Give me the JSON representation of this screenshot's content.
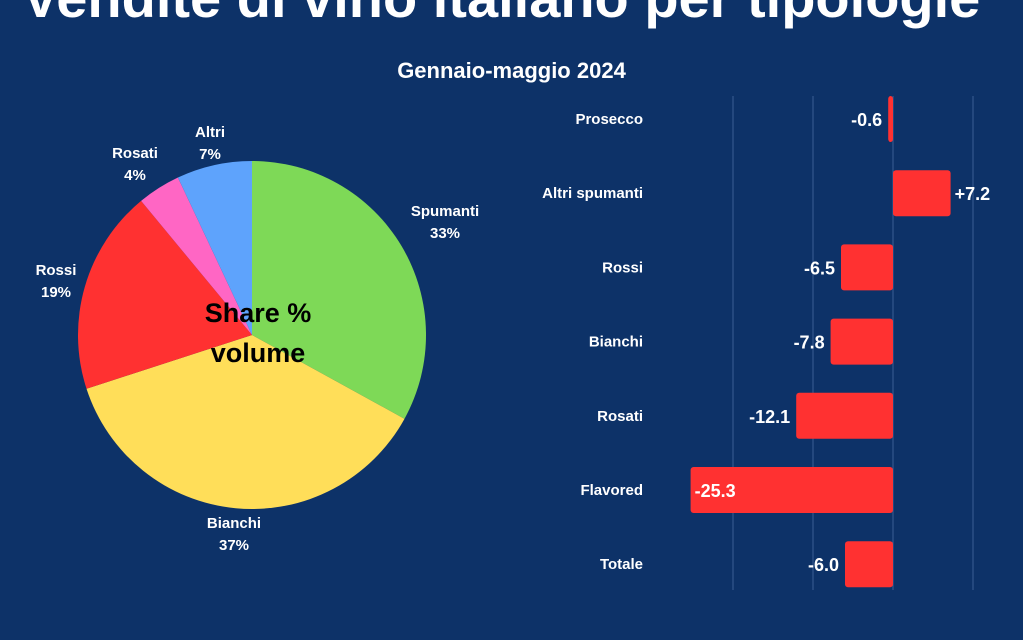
{
  "header": {
    "title": "Vendite di vino italiano per tipologie",
    "subtitle": "Gennaio-maggio 2024"
  },
  "chart_data": [
    {
      "type": "pie",
      "center_label": [
        "Share %",
        "volume"
      ],
      "slices": [
        {
          "label": "Spumanti",
          "value": 33,
          "pct_text": "33%",
          "color": "#7ed957"
        },
        {
          "label": "Bianchi",
          "value": 37,
          "pct_text": "37%",
          "color": "#ffde59"
        },
        {
          "label": "Rossi",
          "value": 19,
          "pct_text": "19%",
          "color": "#ff3131"
        },
        {
          "label": "Rosati",
          "value": 4,
          "pct_text": "4%",
          "color": "#ff66c4"
        },
        {
          "label": "Altri",
          "value": 7,
          "pct_text": "7%",
          "color": "#5ea3fc"
        }
      ]
    },
    {
      "type": "bar",
      "orientation": "horizontal",
      "categories": [
        "Prosecco",
        "Altri spumanti",
        "Rossi",
        "Bianchi",
        "Rosati",
        "Flavored",
        "Totale"
      ],
      "values": [
        -0.6,
        7.2,
        -6.5,
        -7.8,
        -12.1,
        -25.3,
        -6.0
      ],
      "value_labels": [
        "-0.6",
        "+7.2",
        "-6.5",
        "-7.8",
        "-12.1",
        "-25.3",
        "-6.0"
      ],
      "xlim": [
        -25.3,
        10.5
      ],
      "grid_values": [
        -20,
        -10,
        0,
        10
      ],
      "bar_color": "#ff3131",
      "grid": true
    }
  ]
}
